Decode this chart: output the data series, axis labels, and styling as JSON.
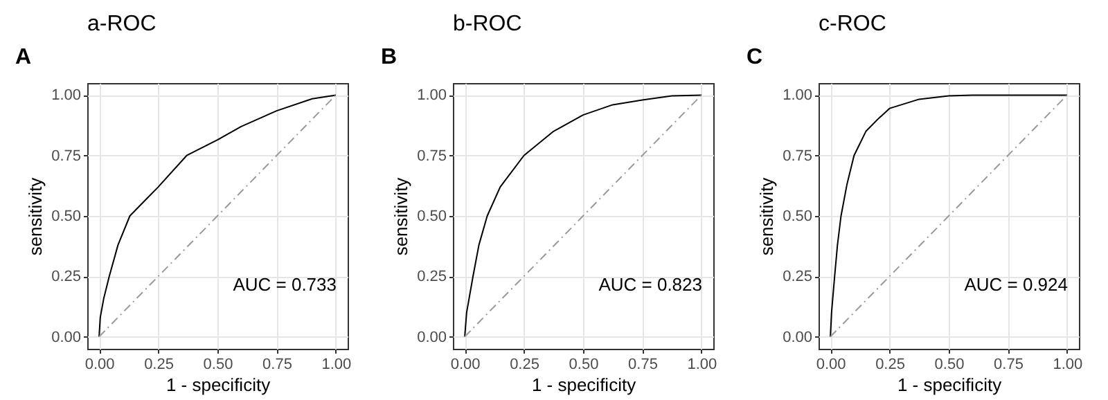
{
  "chart_data": [
    {
      "type": "line",
      "title": "a-ROC",
      "xlabel": "1 - specificity",
      "ylabel": "sensitivity",
      "annotations": [
        "A",
        "AUC =  0.733"
      ],
      "xlim": [
        -0.05,
        1.05
      ],
      "ylim": [
        -0.05,
        1.05
      ],
      "xticks": [
        {
          "value": 0,
          "label": "0.00"
        },
        {
          "value": 0.25,
          "label": "0.25"
        },
        {
          "value": 0.5,
          "label": "0.50"
        },
        {
          "value": 0.75,
          "label": "0.75"
        },
        {
          "value": 1,
          "label": "1.00"
        }
      ],
      "yticks": [
        {
          "value": 0,
          "label": "0.00"
        },
        {
          "value": 0.25,
          "label": "0.25"
        },
        {
          "value": 0.5,
          "label": "0.50"
        },
        {
          "value": 0.75,
          "label": "0.75"
        },
        {
          "value": 1,
          "label": "1.00"
        }
      ],
      "grid": true,
      "series": [
        {
          "color": "#000000",
          "line_style": "solid",
          "x": [
            0,
            0.005,
            0.02,
            0.043,
            0.08,
            0.13,
            0.2,
            0.25,
            0.37,
            0.5,
            0.6,
            0.75,
            0.9,
            1
          ],
          "values": [
            0,
            0.08,
            0.16,
            0.25,
            0.38,
            0.5,
            0.57,
            0.62,
            0.75,
            0.815,
            0.87,
            0.935,
            0.985,
            1
          ]
        },
        {
          "color": "#999999",
          "line_style": "dashed",
          "x": [
            0,
            1
          ],
          "values": [
            0,
            1
          ]
        }
      ]
    },
    {
      "type": "line",
      "title": "b-ROC",
      "xlabel": "1 - specificity",
      "ylabel": "sensitivity",
      "annotations": [
        "B",
        "AUC =  0.823"
      ],
      "xlim": [
        -0.05,
        1.05
      ],
      "ylim": [
        -0.05,
        1.05
      ],
      "xticks": [
        {
          "value": 0,
          "label": "0.00"
        },
        {
          "value": 0.25,
          "label": "0.25"
        },
        {
          "value": 0.5,
          "label": "0.50"
        },
        {
          "value": 0.75,
          "label": "0.75"
        },
        {
          "value": 1,
          "label": "1.00"
        }
      ],
      "yticks": [
        {
          "value": 0,
          "label": "0.00"
        },
        {
          "value": 0.25,
          "label": "0.25"
        },
        {
          "value": 0.5,
          "label": "0.50"
        },
        {
          "value": 0.75,
          "label": "0.75"
        },
        {
          "value": 1,
          "label": "1.00"
        }
      ],
      "grid": true,
      "series": [
        {
          "color": "#000000",
          "line_style": "solid",
          "x": [
            0,
            0.008,
            0.035,
            0.06,
            0.095,
            0.15,
            0.25,
            0.375,
            0.5,
            0.625,
            0.75,
            0.875,
            1
          ],
          "values": [
            0,
            0.1,
            0.25,
            0.38,
            0.5,
            0.62,
            0.75,
            0.85,
            0.918,
            0.96,
            0.98,
            0.997,
            1
          ]
        },
        {
          "color": "#999999",
          "line_style": "dashed",
          "x": [
            0,
            1
          ],
          "values": [
            0,
            1
          ]
        }
      ]
    },
    {
      "type": "line",
      "title": "c-ROC",
      "xlabel": "1 - specificity",
      "ylabel": "sensitivity",
      "annotations": [
        "C",
        "AUC =  0.924"
      ],
      "xlim": [
        -0.05,
        1.05
      ],
      "ylim": [
        -0.05,
        1.05
      ],
      "xticks": [
        {
          "value": 0,
          "label": "0.00"
        },
        {
          "value": 0.25,
          "label": "0.25"
        },
        {
          "value": 0.5,
          "label": "0.50"
        },
        {
          "value": 0.75,
          "label": "0.75"
        },
        {
          "value": 1,
          "label": "1.00"
        }
      ],
      "yticks": [
        {
          "value": 0,
          "label": "0.00"
        },
        {
          "value": 0.25,
          "label": "0.25"
        },
        {
          "value": 0.5,
          "label": "0.50"
        },
        {
          "value": 0.75,
          "label": "0.75"
        },
        {
          "value": 1,
          "label": "1.00"
        }
      ],
      "grid": true,
      "series": [
        {
          "color": "#000000",
          "line_style": "solid",
          "x": [
            0,
            0.005,
            0.018,
            0.03,
            0.045,
            0.07,
            0.1,
            0.15,
            0.2,
            0.25,
            0.375,
            0.5,
            0.6,
            1
          ],
          "values": [
            0,
            0.1,
            0.25,
            0.38,
            0.5,
            0.63,
            0.75,
            0.85,
            0.9,
            0.945,
            0.983,
            0.997,
            1,
            1
          ]
        },
        {
          "color": "#999999",
          "line_style": "dashed",
          "x": [
            0,
            1
          ],
          "values": [
            0,
            1
          ]
        }
      ]
    }
  ]
}
